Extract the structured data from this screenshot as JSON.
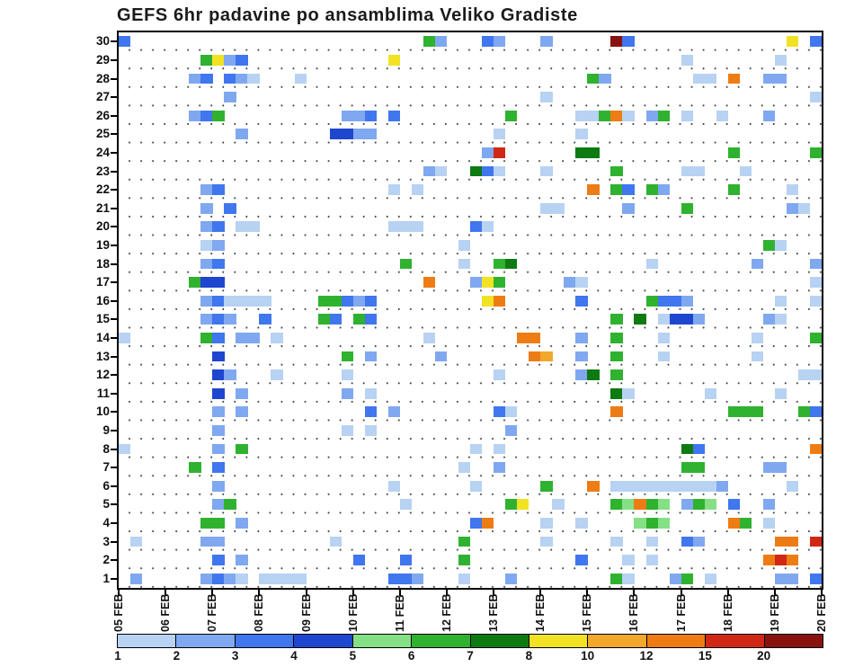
{
  "chart_data": {
    "type": "heatmap",
    "title": "GEFS 6hr padavine po ansamblima Veliko Gradiste",
    "x_axis": {
      "tick_labels": [
        "05 FEB",
        "06 FEB",
        "07 FEB",
        "08 FEB",
        "09 FEB",
        "10 FEB",
        "11 FEB",
        "12 FEB",
        "13 FEB",
        "14 FEB",
        "15 FEB",
        "16 FEB",
        "17 FEB",
        "18 FEB",
        "19 FEB",
        "20 FEB"
      ],
      "steps_per_day": 4,
      "n_time_steps": 60
    },
    "y_axis": {
      "description": "ensemble member",
      "min": 1,
      "max": 30,
      "tick_labels": [
        "30",
        "29",
        "28",
        "27",
        "26",
        "25",
        "24",
        "23",
        "22",
        "21",
        "20",
        "19",
        "18",
        "17",
        "16",
        "15",
        "14",
        "13",
        "12",
        "11",
        "10",
        "9",
        "8",
        "7",
        "6",
        "5",
        "4",
        "3",
        "2",
        "1"
      ]
    },
    "colorbar": {
      "tick_values": [
        1,
        2,
        3,
        4,
        5,
        6,
        7,
        8,
        10,
        12,
        15,
        20
      ],
      "bin_edges": [
        1,
        2,
        3,
        4,
        5,
        6,
        7,
        8,
        10,
        12,
        15,
        20
      ],
      "colors": [
        "#b7d2f2",
        "#7fa8f0",
        "#4076ee",
        "#1e46cf",
        "#85e085",
        "#2fb22f",
        "#0e7a12",
        "#f2e224",
        "#f2a82a",
        "#ee7c14",
        "#d02814",
        "#8a120e"
      ]
    },
    "cells_format": "[member, time_step_6hr_from_05FEB, value_mm]",
    "cells": [
      [
        30,
        0,
        3.5
      ],
      [
        30,
        26,
        6.5
      ],
      [
        30,
        27,
        2.5
      ],
      [
        30,
        31,
        3.5
      ],
      [
        30,
        32,
        2.5
      ],
      [
        30,
        36,
        2.5
      ],
      [
        30,
        42,
        22
      ],
      [
        30,
        43,
        3.5
      ],
      [
        30,
        57,
        9
      ],
      [
        30,
        59,
        3.5
      ],
      [
        29,
        7,
        6.5
      ],
      [
        29,
        8,
        9
      ],
      [
        29,
        9,
        2.5
      ],
      [
        29,
        10,
        3.5
      ],
      [
        29,
        23,
        9
      ],
      [
        29,
        48,
        1.5
      ],
      [
        29,
        56,
        1.5
      ],
      [
        28,
        6,
        2.5
      ],
      [
        28,
        7,
        3.5
      ],
      [
        28,
        9,
        3.5
      ],
      [
        28,
        10,
        2.5
      ],
      [
        28,
        11,
        1.5
      ],
      [
        28,
        15,
        1.5
      ],
      [
        28,
        40,
        6.5
      ],
      [
        28,
        41,
        2.5
      ],
      [
        28,
        49,
        1.5
      ],
      [
        28,
        50,
        1.5
      ],
      [
        28,
        52,
        13
      ],
      [
        28,
        55,
        2.5
      ],
      [
        28,
        56,
        2.5
      ],
      [
        27,
        9,
        2.5
      ],
      [
        27,
        36,
        1.5
      ],
      [
        27,
        59,
        1.5
      ],
      [
        26,
        6,
        2.5
      ],
      [
        26,
        7,
        3.5
      ],
      [
        26,
        8,
        6.5
      ],
      [
        26,
        19,
        2.5
      ],
      [
        26,
        20,
        2.5
      ],
      [
        26,
        21,
        3.5
      ],
      [
        26,
        23,
        3.5
      ],
      [
        26,
        33,
        6.5
      ],
      [
        26,
        39,
        1.5
      ],
      [
        26,
        40,
        1.5
      ],
      [
        26,
        41,
        6.5
      ],
      [
        26,
        42,
        13
      ],
      [
        26,
        43,
        1.5
      ],
      [
        26,
        45,
        2.5
      ],
      [
        26,
        46,
        6.5
      ],
      [
        26,
        48,
        1.5
      ],
      [
        26,
        51,
        1.5
      ],
      [
        26,
        55,
        2.5
      ],
      [
        25,
        10,
        2.5
      ],
      [
        25,
        18,
        4.5
      ],
      [
        25,
        19,
        4.5
      ],
      [
        25,
        20,
        2.5
      ],
      [
        25,
        21,
        2.5
      ],
      [
        25,
        32,
        1.5
      ],
      [
        25,
        39,
        1.5
      ],
      [
        24,
        31,
        2.5
      ],
      [
        24,
        32,
        17
      ],
      [
        24,
        39,
        7.5
      ],
      [
        24,
        40,
        7.5
      ],
      [
        24,
        52,
        6.5
      ],
      [
        24,
        59,
        6.5
      ],
      [
        23,
        26,
        2.5
      ],
      [
        23,
        27,
        1.5
      ],
      [
        23,
        30,
        7.5
      ],
      [
        23,
        31,
        3.5
      ],
      [
        23,
        32,
        1.5
      ],
      [
        23,
        36,
        1.5
      ],
      [
        23,
        42,
        6.5
      ],
      [
        23,
        48,
        1.5
      ],
      [
        23,
        49,
        1.5
      ],
      [
        23,
        53,
        1.5
      ],
      [
        22,
        7,
        2.5
      ],
      [
        22,
        8,
        3.5
      ],
      [
        22,
        23,
        1.5
      ],
      [
        22,
        25,
        1.5
      ],
      [
        22,
        40,
        13
      ],
      [
        22,
        42,
        6.5
      ],
      [
        22,
        43,
        3.5
      ],
      [
        22,
        45,
        6.5
      ],
      [
        22,
        46,
        2.5
      ],
      [
        22,
        52,
        6.5
      ],
      [
        22,
        57,
        1.5
      ],
      [
        21,
        7,
        2.5
      ],
      [
        21,
        9,
        3.5
      ],
      [
        21,
        36,
        1.5
      ],
      [
        21,
        37,
        1.5
      ],
      [
        21,
        43,
        2.5
      ],
      [
        21,
        48,
        6.5
      ],
      [
        21,
        57,
        2.5
      ],
      [
        21,
        58,
        1.5
      ],
      [
        20,
        7,
        2.5
      ],
      [
        20,
        8,
        3.5
      ],
      [
        20,
        10,
        1.5
      ],
      [
        20,
        11,
        1.5
      ],
      [
        20,
        23,
        1.5
      ],
      [
        20,
        24,
        1.5
      ],
      [
        20,
        25,
        1.5
      ],
      [
        20,
        30,
        3.5
      ],
      [
        20,
        31,
        1.5
      ],
      [
        19,
        7,
        1.5
      ],
      [
        19,
        8,
        2.5
      ],
      [
        19,
        29,
        1.5
      ],
      [
        19,
        55,
        6.5
      ],
      [
        19,
        56,
        1.5
      ],
      [
        18,
        7,
        2.5
      ],
      [
        18,
        8,
        3.5
      ],
      [
        18,
        24,
        6.5
      ],
      [
        18,
        29,
        1.5
      ],
      [
        18,
        32,
        6.5
      ],
      [
        18,
        33,
        7.5
      ],
      [
        18,
        45,
        1.5
      ],
      [
        18,
        54,
        2.5
      ],
      [
        18,
        59,
        2.5
      ],
      [
        17,
        6,
        6.5
      ],
      [
        17,
        7,
        4.5
      ],
      [
        17,
        8,
        4.5
      ],
      [
        17,
        26,
        13
      ],
      [
        17,
        30,
        2.5
      ],
      [
        17,
        31,
        9
      ],
      [
        17,
        32,
        6.5
      ],
      [
        17,
        38,
        2.5
      ],
      [
        17,
        39,
        1.5
      ],
      [
        17,
        59,
        1.5
      ],
      [
        16,
        7,
        2.5
      ],
      [
        16,
        8,
        3.5
      ],
      [
        16,
        9,
        1.5
      ],
      [
        16,
        10,
        1.5
      ],
      [
        16,
        11,
        1.5
      ],
      [
        16,
        12,
        1.5
      ],
      [
        16,
        17,
        6.5
      ],
      [
        16,
        18,
        6.5
      ],
      [
        16,
        19,
        3.5
      ],
      [
        16,
        20,
        2.5
      ],
      [
        16,
        21,
        3.5
      ],
      [
        16,
        31,
        9
      ],
      [
        16,
        32,
        13
      ],
      [
        16,
        39,
        3.5
      ],
      [
        16,
        45,
        6.5
      ],
      [
        16,
        46,
        3.5
      ],
      [
        16,
        47,
        3.5
      ],
      [
        16,
        48,
        2.5
      ],
      [
        16,
        56,
        1.5
      ],
      [
        16,
        59,
        1.5
      ],
      [
        15,
        7,
        2.5
      ],
      [
        15,
        8,
        3.5
      ],
      [
        15,
        9,
        2.5
      ],
      [
        15,
        12,
        3.5
      ],
      [
        15,
        17,
        6.5
      ],
      [
        15,
        18,
        3.5
      ],
      [
        15,
        20,
        6.5
      ],
      [
        15,
        21,
        3.5
      ],
      [
        15,
        42,
        6.5
      ],
      [
        15,
        44,
        7.5
      ],
      [
        15,
        46,
        1.5
      ],
      [
        15,
        47,
        4.5
      ],
      [
        15,
        48,
        4.5
      ],
      [
        15,
        49,
        2.5
      ],
      [
        15,
        55,
        2.5
      ],
      [
        15,
        56,
        1.5
      ],
      [
        14,
        0,
        1.5
      ],
      [
        14,
        7,
        6.5
      ],
      [
        14,
        8,
        3.5
      ],
      [
        14,
        10,
        2.5
      ],
      [
        14,
        11,
        2.5
      ],
      [
        14,
        13,
        1.5
      ],
      [
        14,
        26,
        1.5
      ],
      [
        14,
        34,
        13
      ],
      [
        14,
        35,
        13
      ],
      [
        14,
        39,
        2.5
      ],
      [
        14,
        42,
        6.5
      ],
      [
        14,
        46,
        1.5
      ],
      [
        14,
        54,
        1.5
      ],
      [
        14,
        59,
        6.5
      ],
      [
        13,
        8,
        4.5
      ],
      [
        13,
        19,
        6.5
      ],
      [
        13,
        21,
        2.5
      ],
      [
        13,
        27,
        2.5
      ],
      [
        13,
        35,
        13
      ],
      [
        13,
        36,
        11
      ],
      [
        13,
        39,
        2.5
      ],
      [
        13,
        42,
        6.5
      ],
      [
        13,
        46,
        1.5
      ],
      [
        13,
        54,
        1.5
      ],
      [
        12,
        8,
        4.5
      ],
      [
        12,
        9,
        2.5
      ],
      [
        12,
        13,
        1.5
      ],
      [
        12,
        19,
        1.5
      ],
      [
        12,
        32,
        1.5
      ],
      [
        12,
        39,
        2.5
      ],
      [
        12,
        40,
        7.5
      ],
      [
        12,
        42,
        6.5
      ],
      [
        12,
        58,
        1.5
      ],
      [
        12,
        59,
        1.5
      ],
      [
        11,
        8,
        4.5
      ],
      [
        11,
        10,
        2.5
      ],
      [
        11,
        19,
        2.5
      ],
      [
        11,
        21,
        1.5
      ],
      [
        11,
        42,
        7.5
      ],
      [
        11,
        43,
        1.5
      ],
      [
        11,
        50,
        1.5
      ],
      [
        11,
        56,
        1.5
      ],
      [
        10,
        8,
        2.5
      ],
      [
        10,
        10,
        2.5
      ],
      [
        10,
        21,
        3.5
      ],
      [
        10,
        23,
        2.5
      ],
      [
        10,
        32,
        3.5
      ],
      [
        10,
        33,
        1.5
      ],
      [
        10,
        42,
        13
      ],
      [
        10,
        52,
        6.5
      ],
      [
        10,
        53,
        6.5
      ],
      [
        10,
        54,
        6.5
      ],
      [
        10,
        58,
        6.5
      ],
      [
        10,
        59,
        3.5
      ],
      [
        9,
        8,
        2.5
      ],
      [
        9,
        19,
        1.5
      ],
      [
        9,
        21,
        1.5
      ],
      [
        9,
        33,
        2.5
      ],
      [
        8,
        0,
        1.5
      ],
      [
        8,
        8,
        2.5
      ],
      [
        8,
        10,
        6.5
      ],
      [
        8,
        30,
        1.5
      ],
      [
        8,
        32,
        1.5
      ],
      [
        8,
        48,
        7.5
      ],
      [
        8,
        49,
        3.5
      ],
      [
        8,
        59,
        13
      ],
      [
        7,
        6,
        6.5
      ],
      [
        7,
        8,
        3.5
      ],
      [
        7,
        29,
        1.5
      ],
      [
        7,
        32,
        2.5
      ],
      [
        7,
        48,
        6.5
      ],
      [
        7,
        49,
        6.5
      ],
      [
        7,
        55,
        2.5
      ],
      [
        7,
        56,
        2.5
      ],
      [
        6,
        8,
        2.5
      ],
      [
        6,
        23,
        1.5
      ],
      [
        6,
        30,
        1.5
      ],
      [
        6,
        36,
        6.5
      ],
      [
        6,
        40,
        13
      ],
      [
        6,
        42,
        1.5
      ],
      [
        6,
        43,
        1.5
      ],
      [
        6,
        44,
        1.5
      ],
      [
        6,
        45,
        1.5
      ],
      [
        6,
        46,
        1.5
      ],
      [
        6,
        47,
        1.5
      ],
      [
        6,
        48,
        1.5
      ],
      [
        6,
        49,
        1.5
      ],
      [
        6,
        50,
        1.5
      ],
      [
        6,
        51,
        2.5
      ],
      [
        6,
        57,
        1.5
      ],
      [
        5,
        8,
        2.5
      ],
      [
        5,
        9,
        6.5
      ],
      [
        5,
        24,
        1.5
      ],
      [
        5,
        33,
        6.5
      ],
      [
        5,
        34,
        9
      ],
      [
        5,
        37,
        1.5
      ],
      [
        5,
        42,
        6.5
      ],
      [
        5,
        43,
        5.5
      ],
      [
        5,
        44,
        13
      ],
      [
        5,
        45,
        6.5
      ],
      [
        5,
        46,
        5.5
      ],
      [
        5,
        48,
        2.5
      ],
      [
        5,
        49,
        6.5
      ],
      [
        5,
        50,
        5.5
      ],
      [
        5,
        52,
        3.5
      ],
      [
        5,
        55,
        2.5
      ],
      [
        4,
        7,
        6.5
      ],
      [
        4,
        8,
        6.5
      ],
      [
        4,
        10,
        2.5
      ],
      [
        4,
        30,
        3.5
      ],
      [
        4,
        31,
        13
      ],
      [
        4,
        36,
        1.5
      ],
      [
        4,
        39,
        1.5
      ],
      [
        4,
        44,
        5.5
      ],
      [
        4,
        45,
        6.5
      ],
      [
        4,
        46,
        5.5
      ],
      [
        4,
        52,
        13
      ],
      [
        4,
        53,
        6.5
      ],
      [
        4,
        55,
        1.5
      ],
      [
        3,
        1,
        1.5
      ],
      [
        3,
        7,
        2.5
      ],
      [
        3,
        8,
        2.5
      ],
      [
        3,
        18,
        1.5
      ],
      [
        3,
        29,
        6.5
      ],
      [
        3,
        36,
        1.5
      ],
      [
        3,
        42,
        1.5
      ],
      [
        3,
        45,
        1.5
      ],
      [
        3,
        48,
        3.5
      ],
      [
        3,
        49,
        2.5
      ],
      [
        3,
        56,
        13
      ],
      [
        3,
        57,
        13
      ],
      [
        3,
        59,
        17
      ],
      [
        2,
        8,
        3.5
      ],
      [
        2,
        10,
        2.5
      ],
      [
        2,
        20,
        3.5
      ],
      [
        2,
        24,
        3.5
      ],
      [
        2,
        29,
        6.5
      ],
      [
        2,
        39,
        3.5
      ],
      [
        2,
        43,
        1.5
      ],
      [
        2,
        45,
        1.5
      ],
      [
        2,
        55,
        13
      ],
      [
        2,
        56,
        17
      ],
      [
        2,
        57,
        13
      ],
      [
        1,
        1,
        2.5
      ],
      [
        1,
        7,
        2.5
      ],
      [
        1,
        8,
        3.5
      ],
      [
        1,
        9,
        2.5
      ],
      [
        1,
        10,
        1.5
      ],
      [
        1,
        12,
        1.5
      ],
      [
        1,
        13,
        1.5
      ],
      [
        1,
        14,
        1.5
      ],
      [
        1,
        15,
        1.5
      ],
      [
        1,
        23,
        3.5
      ],
      [
        1,
        24,
        3.5
      ],
      [
        1,
        25,
        2.5
      ],
      [
        1,
        29,
        1.5
      ],
      [
        1,
        33,
        2.5
      ],
      [
        1,
        42,
        6.5
      ],
      [
        1,
        43,
        1.5
      ],
      [
        1,
        47,
        2.5
      ],
      [
        1,
        48,
        6.5
      ],
      [
        1,
        50,
        1.5
      ],
      [
        1,
        56,
        2.5
      ],
      [
        1,
        57,
        2.5
      ],
      [
        1,
        59,
        3.5
      ]
    ]
  }
}
